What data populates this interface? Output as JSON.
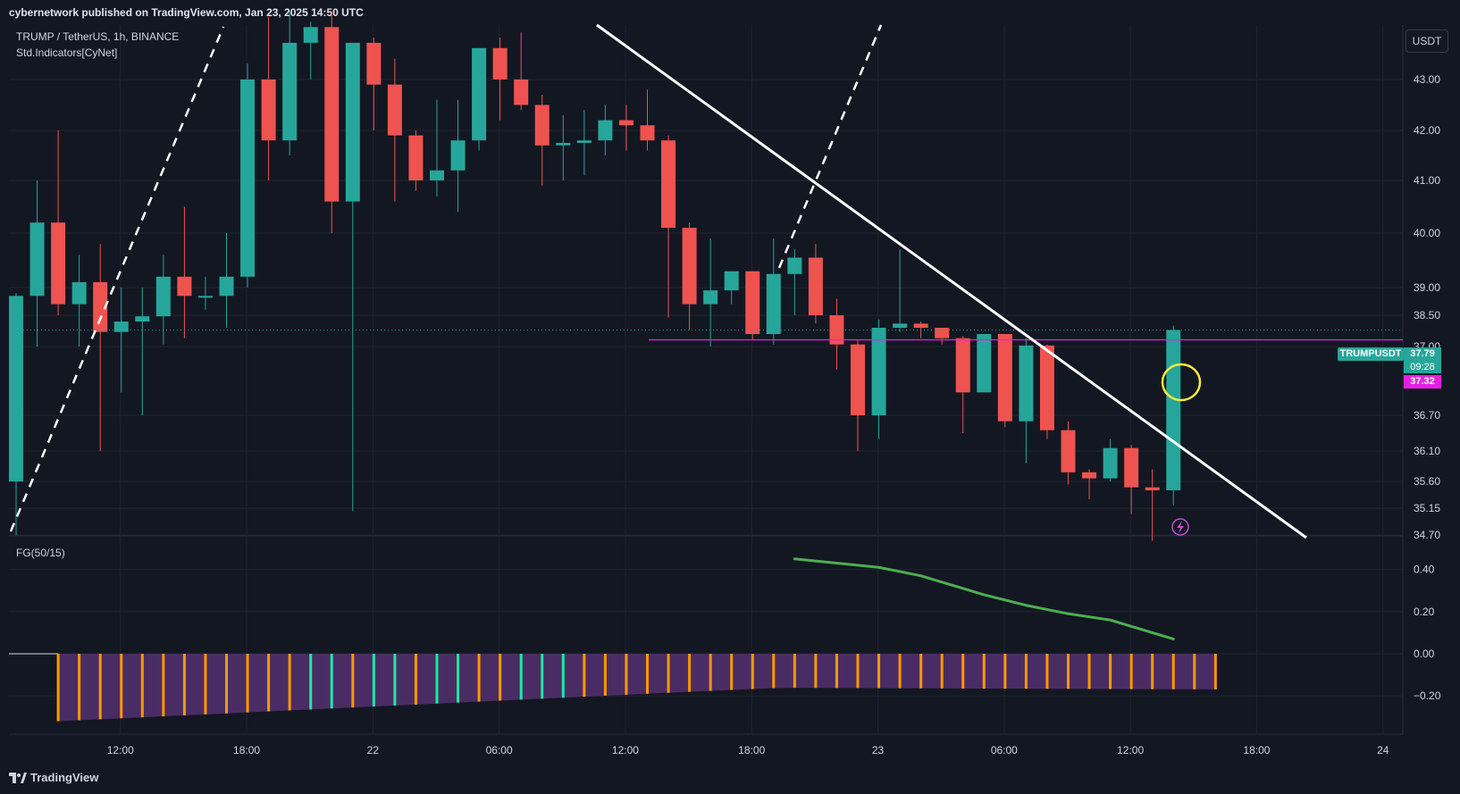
{
  "header": {
    "published": "cybernetwork published on TradingView.com, Jan 23, 2025 14:50 UTC"
  },
  "legend": {
    "symbol": "TRUMP / TetherUS, 1h, BINANCE",
    "indicator": "Std.Indicators[CyNet]",
    "oscillator": "FG(50/15)"
  },
  "price_unit": "USDT",
  "tags": {
    "symbol": "TRUMPUSDT",
    "last_price": "37.79",
    "countdown": "09:28",
    "level": "37.32"
  },
  "footer": {
    "brand": "TradingView"
  },
  "colors": {
    "background": "#131722",
    "grid": "#1f2430",
    "up": "#26a69a",
    "down": "#ef5350",
    "level_line": "#e91ee3",
    "trendline": "#ffffff",
    "fg_line": "#4caf50",
    "fg_fill": "#4a2c64",
    "fg_bar_orange": "#ff9800",
    "fg_bar_green": "#1de9a0",
    "signal_circle": "#ffeb3b",
    "signal_icon": "#c14fd3"
  },
  "chart_data": [
    {
      "type": "candlestick",
      "title": "TRUMP / TetherUS, 1h, BINANCE",
      "x_ticks": [
        "12:00",
        "18:00",
        "22",
        "06:00",
        "12:00",
        "18:00",
        "23",
        "06:00",
        "12:00",
        "18:00",
        "24"
      ],
      "y_ticks": [
        "43.00",
        "42.00",
        "41.00",
        "40.00",
        "39.00",
        "38.50",
        "37.00",
        "36.70",
        "36.10",
        "35.60",
        "35.15",
        "34.70"
      ],
      "ylim": [
        34.7,
        43.8
      ],
      "candles": [
        {
          "o": 35.6,
          "h": 38.9,
          "l": 34.7,
          "c": 38.85
        },
        {
          "o": 38.85,
          "h": 41.0,
          "l": 37.0,
          "c": 40.2
        },
        {
          "o": 40.2,
          "h": 42.0,
          "l": 38.5,
          "c": 38.7
        },
        {
          "o": 38.7,
          "h": 39.6,
          "l": 37.0,
          "c": 39.1
        },
        {
          "o": 39.1,
          "h": 39.8,
          "l": 36.1,
          "c": 37.7
        },
        {
          "o": 37.7,
          "h": 39.0,
          "l": 36.8,
          "c": 38.2
        },
        {
          "o": 38.2,
          "h": 39.0,
          "l": 36.7,
          "c": 38.45
        },
        {
          "o": 38.45,
          "h": 39.6,
          "l": 37.1,
          "c": 39.2
        },
        {
          "o": 39.2,
          "h": 40.5,
          "l": 37.4,
          "c": 38.85
        },
        {
          "o": 38.85,
          "h": 39.2,
          "l": 38.6,
          "c": 38.85
        },
        {
          "o": 38.85,
          "h": 40.0,
          "l": 37.9,
          "c": 39.2
        },
        {
          "o": 39.2,
          "h": 43.3,
          "l": 39.0,
          "c": 43.0
        },
        {
          "o": 43.0,
          "h": 44.2,
          "l": 41.0,
          "c": 41.8
        },
        {
          "o": 41.8,
          "h": 44.3,
          "l": 41.5,
          "c": 43.7
        },
        {
          "o": 43.7,
          "h": 44.1,
          "l": 43.0,
          "c": 44.0
        },
        {
          "o": 44.0,
          "h": 44.3,
          "l": 40.0,
          "c": 40.6
        },
        {
          "o": 40.6,
          "h": 43.7,
          "l": 35.1,
          "c": 43.7
        },
        {
          "o": 43.7,
          "h": 43.8,
          "l": 42.0,
          "c": 42.9
        },
        {
          "o": 42.9,
          "h": 43.4,
          "l": 40.6,
          "c": 41.9
        },
        {
          "o": 41.9,
          "h": 42.0,
          "l": 40.8,
          "c": 41.0
        },
        {
          "o": 41.0,
          "h": 42.6,
          "l": 40.7,
          "c": 41.2
        },
        {
          "o": 41.2,
          "h": 42.6,
          "l": 40.4,
          "c": 41.8
        },
        {
          "o": 41.8,
          "h": 43.6,
          "l": 41.6,
          "c": 43.6
        },
        {
          "o": 43.6,
          "h": 43.8,
          "l": 42.2,
          "c": 43.0
        },
        {
          "o": 43.0,
          "h": 43.9,
          "l": 42.4,
          "c": 42.5
        },
        {
          "o": 42.5,
          "h": 42.7,
          "l": 40.9,
          "c": 41.7
        },
        {
          "o": 41.7,
          "h": 42.3,
          "l": 41.0,
          "c": 41.75
        },
        {
          "o": 41.75,
          "h": 42.4,
          "l": 41.1,
          "c": 41.8
        },
        {
          "o": 41.8,
          "h": 42.5,
          "l": 41.5,
          "c": 42.2
        },
        {
          "o": 42.2,
          "h": 42.5,
          "l": 41.6,
          "c": 42.1
        },
        {
          "o": 42.1,
          "h": 42.8,
          "l": 41.6,
          "c": 41.8
        },
        {
          "o": 41.8,
          "h": 41.9,
          "l": 38.4,
          "c": 40.1
        },
        {
          "o": 40.1,
          "h": 40.2,
          "l": 37.8,
          "c": 38.7
        },
        {
          "o": 38.7,
          "h": 39.9,
          "l": 37.0,
          "c": 38.95
        },
        {
          "o": 38.95,
          "h": 39.3,
          "l": 38.7,
          "c": 39.3
        },
        {
          "o": 39.3,
          "h": 39.3,
          "l": 37.3,
          "c": 37.6
        },
        {
          "o": 37.6,
          "h": 39.9,
          "l": 37.1,
          "c": 39.25
        },
        {
          "o": 39.25,
          "h": 39.7,
          "l": 38.5,
          "c": 39.55
        },
        {
          "o": 39.55,
          "h": 39.8,
          "l": 38.1,
          "c": 38.5
        },
        {
          "o": 38.5,
          "h": 38.8,
          "l": 36.9,
          "c": 37.1
        },
        {
          "o": 37.1,
          "h": 37.3,
          "l": 36.1,
          "c": 36.7
        },
        {
          "o": 36.7,
          "h": 38.3,
          "l": 36.3,
          "c": 37.9
        },
        {
          "o": 37.9,
          "h": 39.7,
          "l": 37.7,
          "c": 38.1
        },
        {
          "o": 38.1,
          "h": 38.2,
          "l": 37.4,
          "c": 37.9
        },
        {
          "o": 37.9,
          "h": 37.9,
          "l": 37.1,
          "c": 37.4
        },
        {
          "o": 37.4,
          "h": 37.5,
          "l": 36.4,
          "c": 36.8
        },
        {
          "o": 36.8,
          "h": 37.6,
          "l": 36.8,
          "c": 37.6
        },
        {
          "o": 37.6,
          "h": 37.6,
          "l": 36.5,
          "c": 36.6
        },
        {
          "o": 36.6,
          "h": 37.4,
          "l": 35.9,
          "c": 37.05
        },
        {
          "o": 37.05,
          "h": 37.1,
          "l": 36.3,
          "c": 36.45
        },
        {
          "o": 36.45,
          "h": 36.6,
          "l": 35.55,
          "c": 35.75
        },
        {
          "o": 35.75,
          "h": 35.8,
          "l": 35.3,
          "c": 35.65
        },
        {
          "o": 35.65,
          "h": 36.3,
          "l": 35.6,
          "c": 36.15
        },
        {
          "o": 36.15,
          "h": 36.2,
          "l": 35.05,
          "c": 35.5
        },
        {
          "o": 35.5,
          "h": 35.8,
          "l": 34.6,
          "c": 35.45
        },
        {
          "o": 35.45,
          "h": 38.0,
          "l": 35.2,
          "c": 37.79
        }
      ],
      "horizontal_level": 37.32,
      "last_price": 37.79
    },
    {
      "type": "bar",
      "title": "FG(50/15)",
      "y_ticks": [
        "0.40",
        "0.20",
        "0.00",
        "−0.20"
      ],
      "ylim": [
        -0.38,
        0.5
      ],
      "line_values": [
        0.45,
        0.44,
        0.43,
        0.42,
        0.41,
        0.39,
        0.37,
        0.34,
        0.31,
        0.28,
        0.255,
        0.23,
        0.21,
        0.19,
        0.175,
        0.16,
        0.13,
        0.1,
        0.07
      ],
      "line_start_index": 37,
      "bar_colors": [
        "o",
        "o",
        "o",
        "o",
        "o",
        "o",
        "o",
        "o",
        "o",
        "o",
        "o",
        "o",
        "g",
        "g",
        "o",
        "g",
        "g",
        "o",
        "g",
        "g",
        "o",
        "o",
        "g",
        "g",
        "g",
        "o",
        "o",
        "o",
        "o",
        "o",
        "o",
        "o",
        "o",
        "o",
        "o",
        "o",
        "o",
        "o",
        "o",
        "o",
        "o",
        "o",
        "o",
        "o",
        "o",
        "o",
        "o",
        "o",
        "o",
        "o",
        "o",
        "o",
        "o",
        "o",
        "o",
        "o"
      ],
      "bar_start_index": 2
    }
  ]
}
